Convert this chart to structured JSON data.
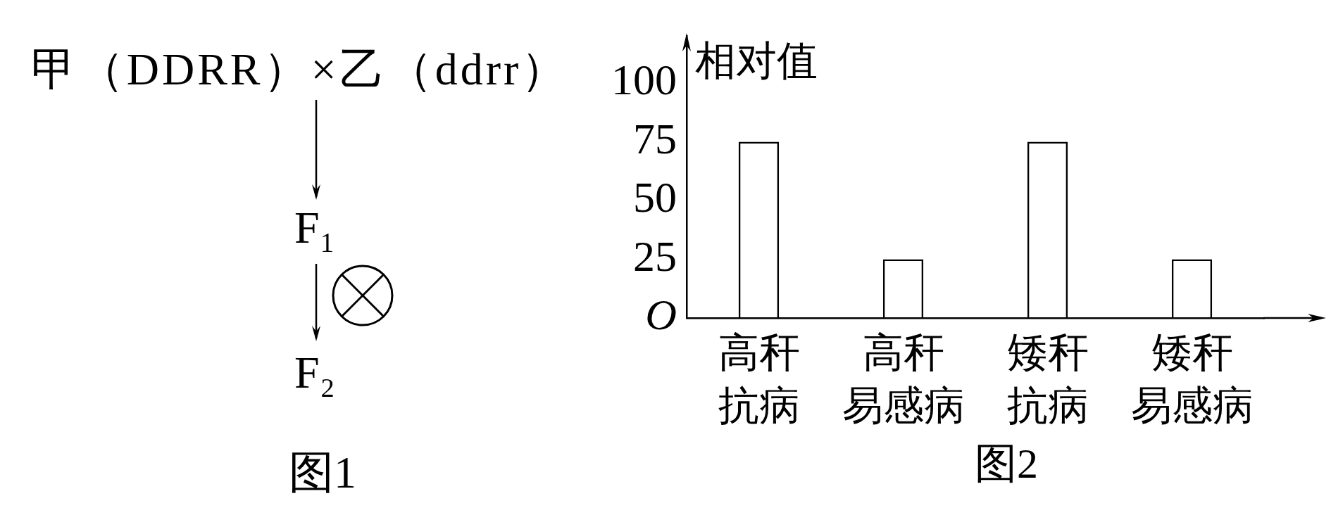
{
  "chart_data": [
    {
      "type": "other",
      "title": "图1",
      "annotations": [
        "甲（DDRR）×乙（ddrr）",
        "F₁",
        "F₂"
      ]
    },
    {
      "type": "bar",
      "title": "图2",
      "ylabel": "相对值",
      "categories": [
        "高秆抗病",
        "高秆易感病",
        "矮秆抗病",
        "矮秆易感病"
      ],
      "values": [
        75,
        25,
        75,
        25
      ],
      "color": "#000000",
      "ylim": [
        0,
        120
      ],
      "yticks": [
        {
          "value": 0,
          "label": "O"
        },
        25,
        50,
        75,
        100
      ]
    }
  ]
}
